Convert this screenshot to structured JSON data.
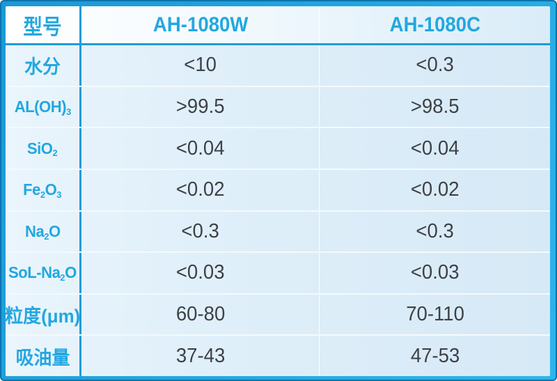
{
  "table": {
    "header": {
      "model_label": "型号",
      "columns": [
        "AH-1080W",
        "AH-1080C"
      ]
    },
    "rows": [
      {
        "name": "moisture",
        "label": [
          {
            "t": "水分"
          }
        ],
        "values": [
          "<10",
          "<0.3"
        ]
      },
      {
        "name": "al-oh-3",
        "label": [
          {
            "t": "AL(OH)"
          },
          {
            "t": "3",
            "sub": true
          }
        ],
        "values": [
          ">99.5",
          ">98.5"
        ]
      },
      {
        "name": "sio2",
        "label": [
          {
            "t": "SiO"
          },
          {
            "t": "2",
            "sub": true
          }
        ],
        "values": [
          "<0.04",
          "<0.04"
        ]
      },
      {
        "name": "fe2o3",
        "label": [
          {
            "t": "Fe"
          },
          {
            "t": "2",
            "sub": true
          },
          {
            "t": "O"
          },
          {
            "t": "3",
            "sub": true
          }
        ],
        "values": [
          "<0.02",
          "<0.02"
        ]
      },
      {
        "name": "na2o",
        "label": [
          {
            "t": "Na"
          },
          {
            "t": "2",
            "sub": true
          },
          {
            "t": "O"
          }
        ],
        "values": [
          "<0.3",
          "<0.3"
        ]
      },
      {
        "name": "sol-na2o",
        "label": [
          {
            "t": "SoL-Na"
          },
          {
            "t": "2",
            "sub": true
          },
          {
            "t": "O"
          }
        ],
        "values": [
          "<0.03",
          "<0.03"
        ]
      },
      {
        "name": "particle-size",
        "label": [
          {
            "t": "粒度(μm)"
          }
        ],
        "values": [
          "60-80",
          "70-110"
        ]
      },
      {
        "name": "oil-absorption",
        "label": [
          {
            "t": "吸油量"
          }
        ],
        "values": [
          "37-43",
          "47-53"
        ]
      }
    ]
  },
  "chart_data": {
    "type": "table",
    "title": "",
    "columns": [
      "型号",
      "AH-1080W",
      "AH-1080C"
    ],
    "rows": [
      [
        "水分",
        "<10",
        "<0.3"
      ],
      [
        "AL(OH)3",
        ">99.5",
        ">98.5"
      ],
      [
        "SiO2",
        "<0.04",
        "<0.04"
      ],
      [
        "Fe2O3",
        "<0.02",
        "<0.02"
      ],
      [
        "Na2O",
        "<0.3",
        "<0.3"
      ],
      [
        "SoL-Na2O",
        "<0.03",
        "<0.03"
      ],
      [
        "粒度(μm)",
        "60-80",
        "70-110"
      ],
      [
        "吸油量",
        "37-43",
        "47-53"
      ]
    ]
  },
  "colors": {
    "accent_text": "#23a7e0",
    "divider_blue": "#1f9cd8",
    "frame_cyan": "#24a7e1",
    "frame_outline": "#0d73ad",
    "header_bg": "#f4fafd",
    "body_bg": "#dceef9",
    "value_text": "#3e4147",
    "row_separator": "#f3fafd"
  }
}
